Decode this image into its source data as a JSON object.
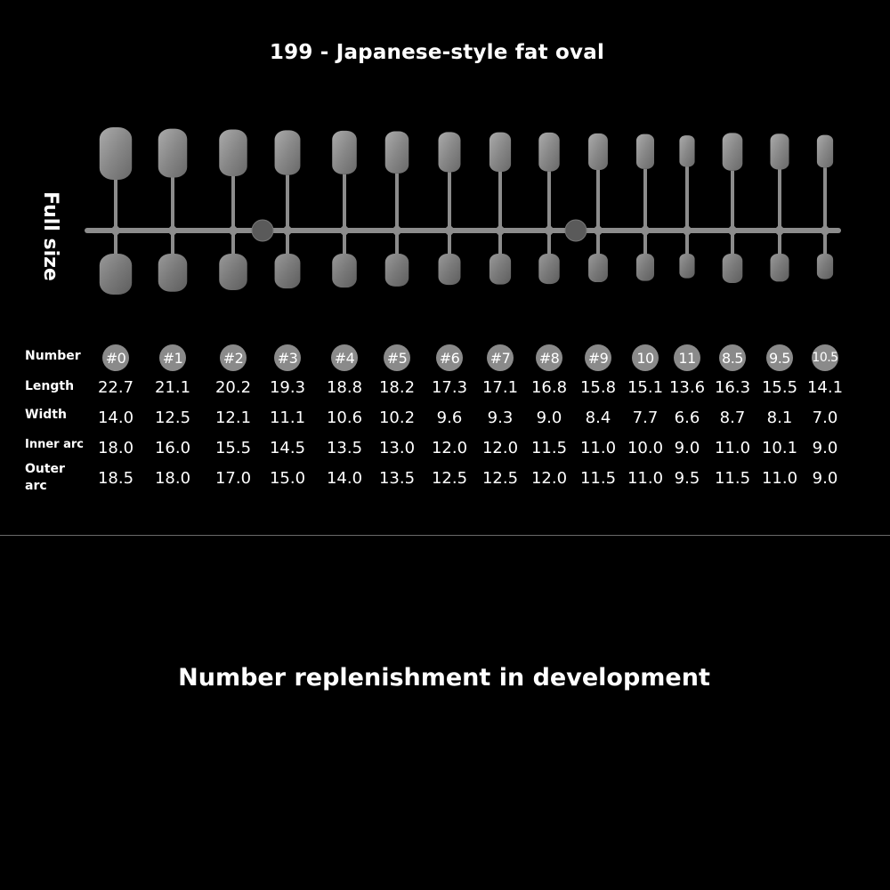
{
  "title": "199 - Japanese-style fat oval",
  "side_label": "Full size",
  "row_labels": {
    "number": "Number",
    "length": "Length",
    "width": "Width",
    "inner_arc": "Inner arc",
    "outer_arc_line1": "Outer",
    "outer_arc_line2": "arc"
  },
  "sizes": [
    {
      "number": "#0",
      "length": "22.7",
      "width": "14.0",
      "inner_arc": "18.0",
      "outer_arc": "18.5"
    },
    {
      "number": "#1",
      "length": "21.1",
      "width": "12.5",
      "inner_arc": "16.0",
      "outer_arc": "18.0"
    },
    {
      "number": "#2",
      "length": "20.2",
      "width": "12.1",
      "inner_arc": "15.5",
      "outer_arc": "17.0"
    },
    {
      "number": "#3",
      "length": "19.3",
      "width": "11.1",
      "inner_arc": "14.5",
      "outer_arc": "15.0"
    },
    {
      "number": "#4",
      "length": "18.8",
      "width": "10.6",
      "inner_arc": "13.5",
      "outer_arc": "14.0"
    },
    {
      "number": "#5",
      "length": "18.2",
      "width": "10.2",
      "inner_arc": "13.0",
      "outer_arc": "13.5"
    },
    {
      "number": "#6",
      "length": "17.3",
      "width": "9.6",
      "inner_arc": "12.0",
      "outer_arc": "12.5"
    },
    {
      "number": "#7",
      "length": "17.1",
      "width": "9.3",
      "inner_arc": "12.0",
      "outer_arc": "12.5"
    },
    {
      "number": "#8",
      "length": "16.8",
      "width": "9.0",
      "inner_arc": "11.5",
      "outer_arc": "12.0"
    },
    {
      "number": "#9",
      "length": "15.8",
      "width": "8.4",
      "inner_arc": "11.0",
      "outer_arc": "11.5"
    },
    {
      "number": "10",
      "length": "15.1",
      "width": "7.7",
      "inner_arc": "10.0",
      "outer_arc": "11.0"
    },
    {
      "number": "11",
      "length": "13.6",
      "width": "6.6",
      "inner_arc": "9.0",
      "outer_arc": "9.5"
    },
    {
      "number": "8.5",
      "length": "16.3",
      "width": "8.7",
      "inner_arc": "11.0",
      "outer_arc": "11.5"
    },
    {
      "number": "9.5",
      "length": "15.5",
      "width": "8.1",
      "inner_arc": "10.1",
      "outer_arc": "11.0"
    },
    {
      "number": "10.5",
      "length": "14.1",
      "width": "7.0",
      "inner_arc": "9.0",
      "outer_arc": "9.0"
    }
  ],
  "footer": "Number replenishment in development",
  "colors": {
    "background": "#000000",
    "badge": "#8a8a8a",
    "text": "#ffffff",
    "nail": "#9a9a9a",
    "divider": "#6a6a6a"
  }
}
